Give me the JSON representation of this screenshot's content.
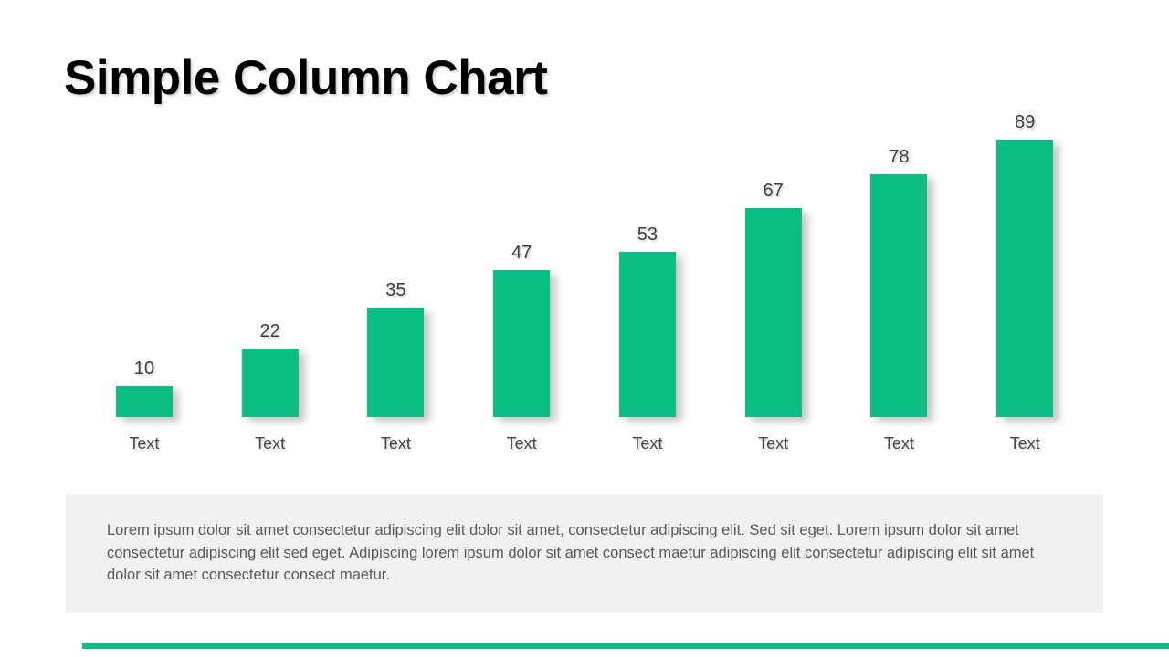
{
  "slide": {
    "title": "Simple Column Chart",
    "background_color": "#FFFFFF",
    "accent_color": "#0ABE84"
  },
  "chart_data": {
    "type": "bar",
    "title": "Simple Column Chart",
    "categories": [
      "Text",
      "Text",
      "Text",
      "Text",
      "Text",
      "Text",
      "Text",
      "Text"
    ],
    "values": [
      10,
      22,
      35,
      47,
      53,
      67,
      78,
      89
    ],
    "xlabel": "",
    "ylabel": "",
    "ylim": [
      0,
      89
    ],
    "grid": false,
    "legend": false,
    "data_labels": true,
    "bar_color": "#0ABE84",
    "value_label_color": "#3F3F3F",
    "category_label_color": "#474747"
  },
  "footer": {
    "text": "Lorem ipsum dolor sit amet consectetur adipiscing elit dolor sit amet, consectetur adipiscing elit. Sed sit eget. Lorem ipsum dolor sit amet consectetur adipiscing elit sed eget. Adipiscing lorem ipsum dolor sit amet consect maetur adipiscing elit consectetur adipiscing elit sit amet dolor sit amet consectetur consect maetur.",
    "background_color": "#F1F1F2"
  }
}
